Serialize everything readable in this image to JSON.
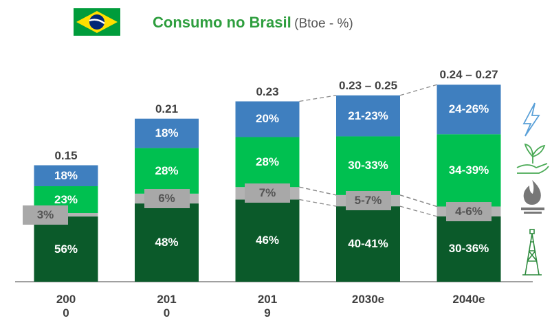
{
  "chart_data": {
    "type": "bar",
    "title": "Consumo no Brasil",
    "subtitle": "(Btoe - %)",
    "categories": [
      "2000",
      "2010",
      "2019",
      "2030e",
      "2040e"
    ],
    "totals": [
      0.15,
      0.21,
      0.23,
      0.23,
      0.24
    ],
    "totals_high": [
      null,
      null,
      null,
      0.25,
      0.27
    ],
    "total_labels": [
      "0.15",
      "0.21",
      "0.23",
      "0.23 – 0.25",
      "0.24 – 0.27"
    ],
    "ylim": [
      0,
      0.3
    ],
    "series": [
      {
        "color": "#0b5a2a",
        "values": [
          56,
          48,
          46,
          40,
          30
        ],
        "values_high": [
          null,
          null,
          null,
          41,
          36
        ],
        "value_labels": [
          "56%",
          "48%",
          "46%",
          "40-41%",
          "30-36%"
        ]
      },
      {
        "color": "#b3b3b3",
        "values": [
          3,
          6,
          7,
          5,
          4
        ],
        "values_high": [
          null,
          null,
          null,
          7,
          6
        ],
        "value_labels": [
          "3%",
          "6%",
          "7%",
          "5-7%",
          "4-6%"
        ]
      },
      {
        "color": "#00c050",
        "values": [
          23,
          28,
          28,
          30,
          34
        ],
        "values_high": [
          null,
          null,
          null,
          33,
          39
        ],
        "value_labels": [
          "23%",
          "28%",
          "28%",
          "30-33%",
          "34-39%"
        ]
      },
      {
        "color": "#3f7fbf",
        "values": [
          18,
          18,
          20,
          21,
          24
        ],
        "values_high": [
          null,
          null,
          null,
          23,
          26
        ],
        "value_labels": [
          "18%",
          "18%",
          "20%",
          "21-23%",
          "24-26%"
        ]
      }
    ]
  }
}
